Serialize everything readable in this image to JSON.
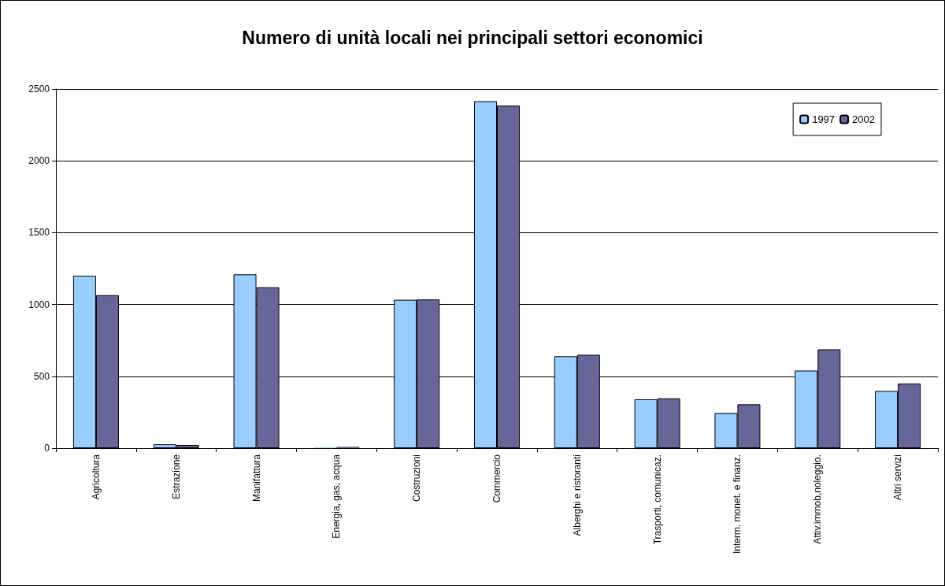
{
  "chart_data": {
    "type": "bar",
    "title": "Numero di unità locali nei principali settori economici",
    "categories": [
      "Agricoltura",
      "Estrazione",
      "Manifattura",
      "Energia, gas, acqua",
      "Costruzioni",
      "Commercio",
      "Alberghi e ristoranti",
      "Trasporti, comunicaz.",
      "Interm. monet. e finanz.",
      "Attiv.immob,noleggio.",
      "Altri servizi"
    ],
    "series": [
      {
        "name": "1997",
        "color": "#99ccff",
        "values": [
          1200,
          27,
          1210,
          5,
          1033,
          2415,
          640,
          340,
          245,
          540,
          398
        ]
      },
      {
        "name": "2002",
        "color": "#666699",
        "values": [
          1065,
          22,
          1120,
          10,
          1035,
          2385,
          650,
          347,
          305,
          688,
          450
        ]
      }
    ],
    "ylim": [
      0,
      2500
    ],
    "yticks": [
      0,
      500,
      1000,
      1500,
      2000,
      2500
    ],
    "grid": "y",
    "legend": "top right"
  }
}
